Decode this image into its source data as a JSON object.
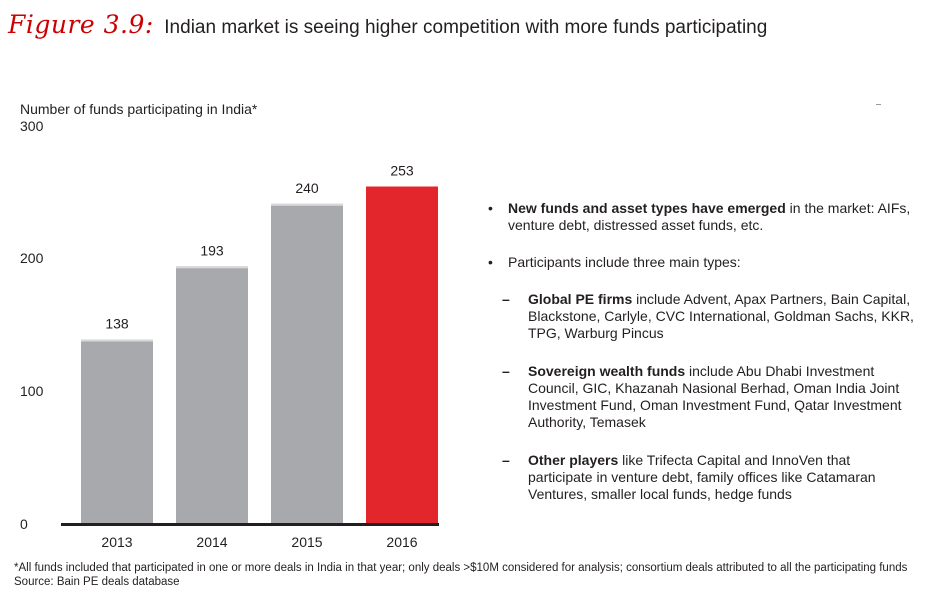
{
  "figure": {
    "label": "Figure 3.9:",
    "title": "Indian market is seeing higher competition with more funds participating"
  },
  "chart_data": {
    "type": "bar",
    "ylabel": "Number of funds participating in India*",
    "categories": [
      "2013",
      "2014",
      "2015",
      "2016"
    ],
    "values": [
      138,
      193,
      240,
      253
    ],
    "data_labels": [
      "138",
      "193",
      "240",
      "253"
    ],
    "yticks": [
      "300",
      "200",
      "100",
      "0"
    ],
    "ylim": [
      0,
      300
    ],
    "colors": [
      "#a7a9ac",
      "#a7a9ac",
      "#a7a9ac",
      "#e3262b"
    ],
    "grid": false,
    "legend": "none"
  },
  "bullets": [
    {
      "bold": "New funds and asset types have emerged",
      "text": " in the market: AIFs, venture debt, distressed asset funds, etc."
    },
    {
      "bold": "",
      "text": "Participants include three main types:"
    }
  ],
  "sub_bullets": [
    {
      "bold": "Global PE firms",
      "text": " include Advent, Apax Partners, Bain Capital, Blackstone, Carlyle, CVC International, Goldman Sachs, KKR, TPG, Warburg Pincus"
    },
    {
      "bold": "Sovereign wealth funds",
      "text": " include Abu Dhabi Investment Council, GIC, Khazanah Nasional Berhad, Oman India Joint Investment Fund, Oman Investment Fund, Qatar Investment Authority, Temasek"
    },
    {
      "bold": "Other players",
      "text": " like Trifecta Capital and InnoVen that participate in venture debt, family offices like Catamaran Ventures, smaller local funds, hedge funds"
    }
  ],
  "footnote": "*All funds included that participated in one or more deals in India in that year; only deals >$10M considered for analysis; consortium deals attributed to all the participating funds",
  "source": "Source: Bain PE deals database"
}
